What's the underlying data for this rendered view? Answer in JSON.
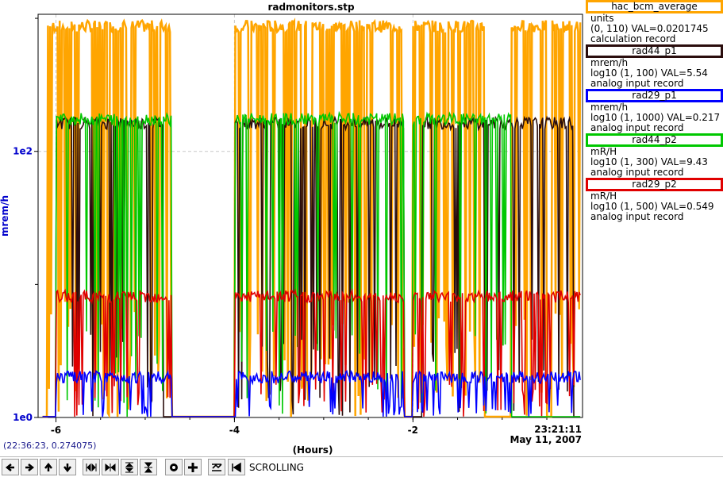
{
  "title": "radmonitors.stp",
  "y_axis_label": "mrem/h",
  "x_axis_label": "(Hours)",
  "timestamp": {
    "time": "23:21:11",
    "date": "May 11, 2007"
  },
  "cursor_readout": "(22:36:23, 0.274075)",
  "legend": [
    {
      "name": "hac_bcm_average",
      "color": "#ffa500",
      "units": "units",
      "range": "(0, 110) VAL=0.0201745",
      "record": "calculation record"
    },
    {
      "name": "rad44_p1",
      "color": "#2a0d0d",
      "units": "mrem/h",
      "range": "log10 (1, 100) VAL=5.54",
      "record": "analog input record"
    },
    {
      "name": "rad29_p1",
      "color": "#0000ff",
      "units": "mrem/h",
      "range": "log10 (1, 1000) VAL=0.217",
      "record": "analog input record"
    },
    {
      "name": "rad44_p2",
      "color": "#00c800",
      "units": "mR/H",
      "range": "log10 (1, 300) VAL=9.43",
      "record": "analog input record"
    },
    {
      "name": "rad29_p2",
      "color": "#e00000",
      "units": "mR/H",
      "range": "log10 (1, 500) VAL=0.549",
      "record": "analog input record"
    }
  ],
  "toolbar": {
    "buttons": [
      "scroll-left-icon",
      "scroll-right-icon",
      "scroll-up-icon",
      "scroll-down-icon",
      "zoom-in-horizontal-icon",
      "zoom-out-horizontal-icon",
      "zoom-in-vertical-icon",
      "zoom-out-vertical-icon",
      "stop-icon",
      "plus-icon",
      "mode-icon",
      "back-icon"
    ],
    "mode_label": "SCROLLING"
  },
  "chart_data": {
    "type": "line",
    "title": "radmonitors.stp",
    "xlabel": "(Hours)",
    "ylabel": "mrem/h",
    "xlim": [
      -6.2,
      -0.1
    ],
    "y_scale": "log",
    "y_ticks": [
      "1e0",
      "1e2"
    ],
    "x_ticks": [
      "-6",
      "-4",
      "-2"
    ],
    "grid": true,
    "legend_position": "right",
    "series": [
      {
        "name": "hac_bcm_average",
        "color": "#ffa500",
        "level": 0.97,
        "low": 0.0,
        "on_segments": [
          [
            -6.1,
            -4.7
          ],
          [
            -4.0,
            -2.1
          ],
          [
            -2.0,
            -1.2
          ],
          [
            -0.9,
            -0.5
          ],
          [
            -0.45,
            -0.12
          ]
        ]
      },
      {
        "name": "rad44_p1",
        "color": "#2a0d0d",
        "level": 0.73,
        "low": 0.0,
        "on_segments": [
          [
            -6.0,
            -4.8
          ],
          [
            -4.0,
            -2.1
          ],
          [
            -1.9,
            -0.2
          ]
        ]
      },
      {
        "name": "rad44_p2",
        "color": "#00c800",
        "level": 0.74,
        "low": 0.0,
        "on_segments": [
          [
            -6.0,
            -4.7
          ],
          [
            -4.0,
            -2.1
          ],
          [
            -2.0,
            -0.9
          ]
        ]
      },
      {
        "name": "rad29_p2",
        "color": "#e00000",
        "level": 0.3,
        "low": 0.0,
        "on_segments": [
          [
            -6.0,
            -4.7
          ],
          [
            -4.0,
            -2.1
          ],
          [
            -2.0,
            -0.1
          ]
        ]
      },
      {
        "name": "rad29_p1",
        "color": "#0000ff",
        "level": 0.1,
        "low": 0.0,
        "on_segments": [
          [
            -6.0,
            -4.7
          ],
          [
            -4.0,
            -2.1
          ],
          [
            -2.0,
            -0.1
          ]
        ]
      }
    ]
  }
}
